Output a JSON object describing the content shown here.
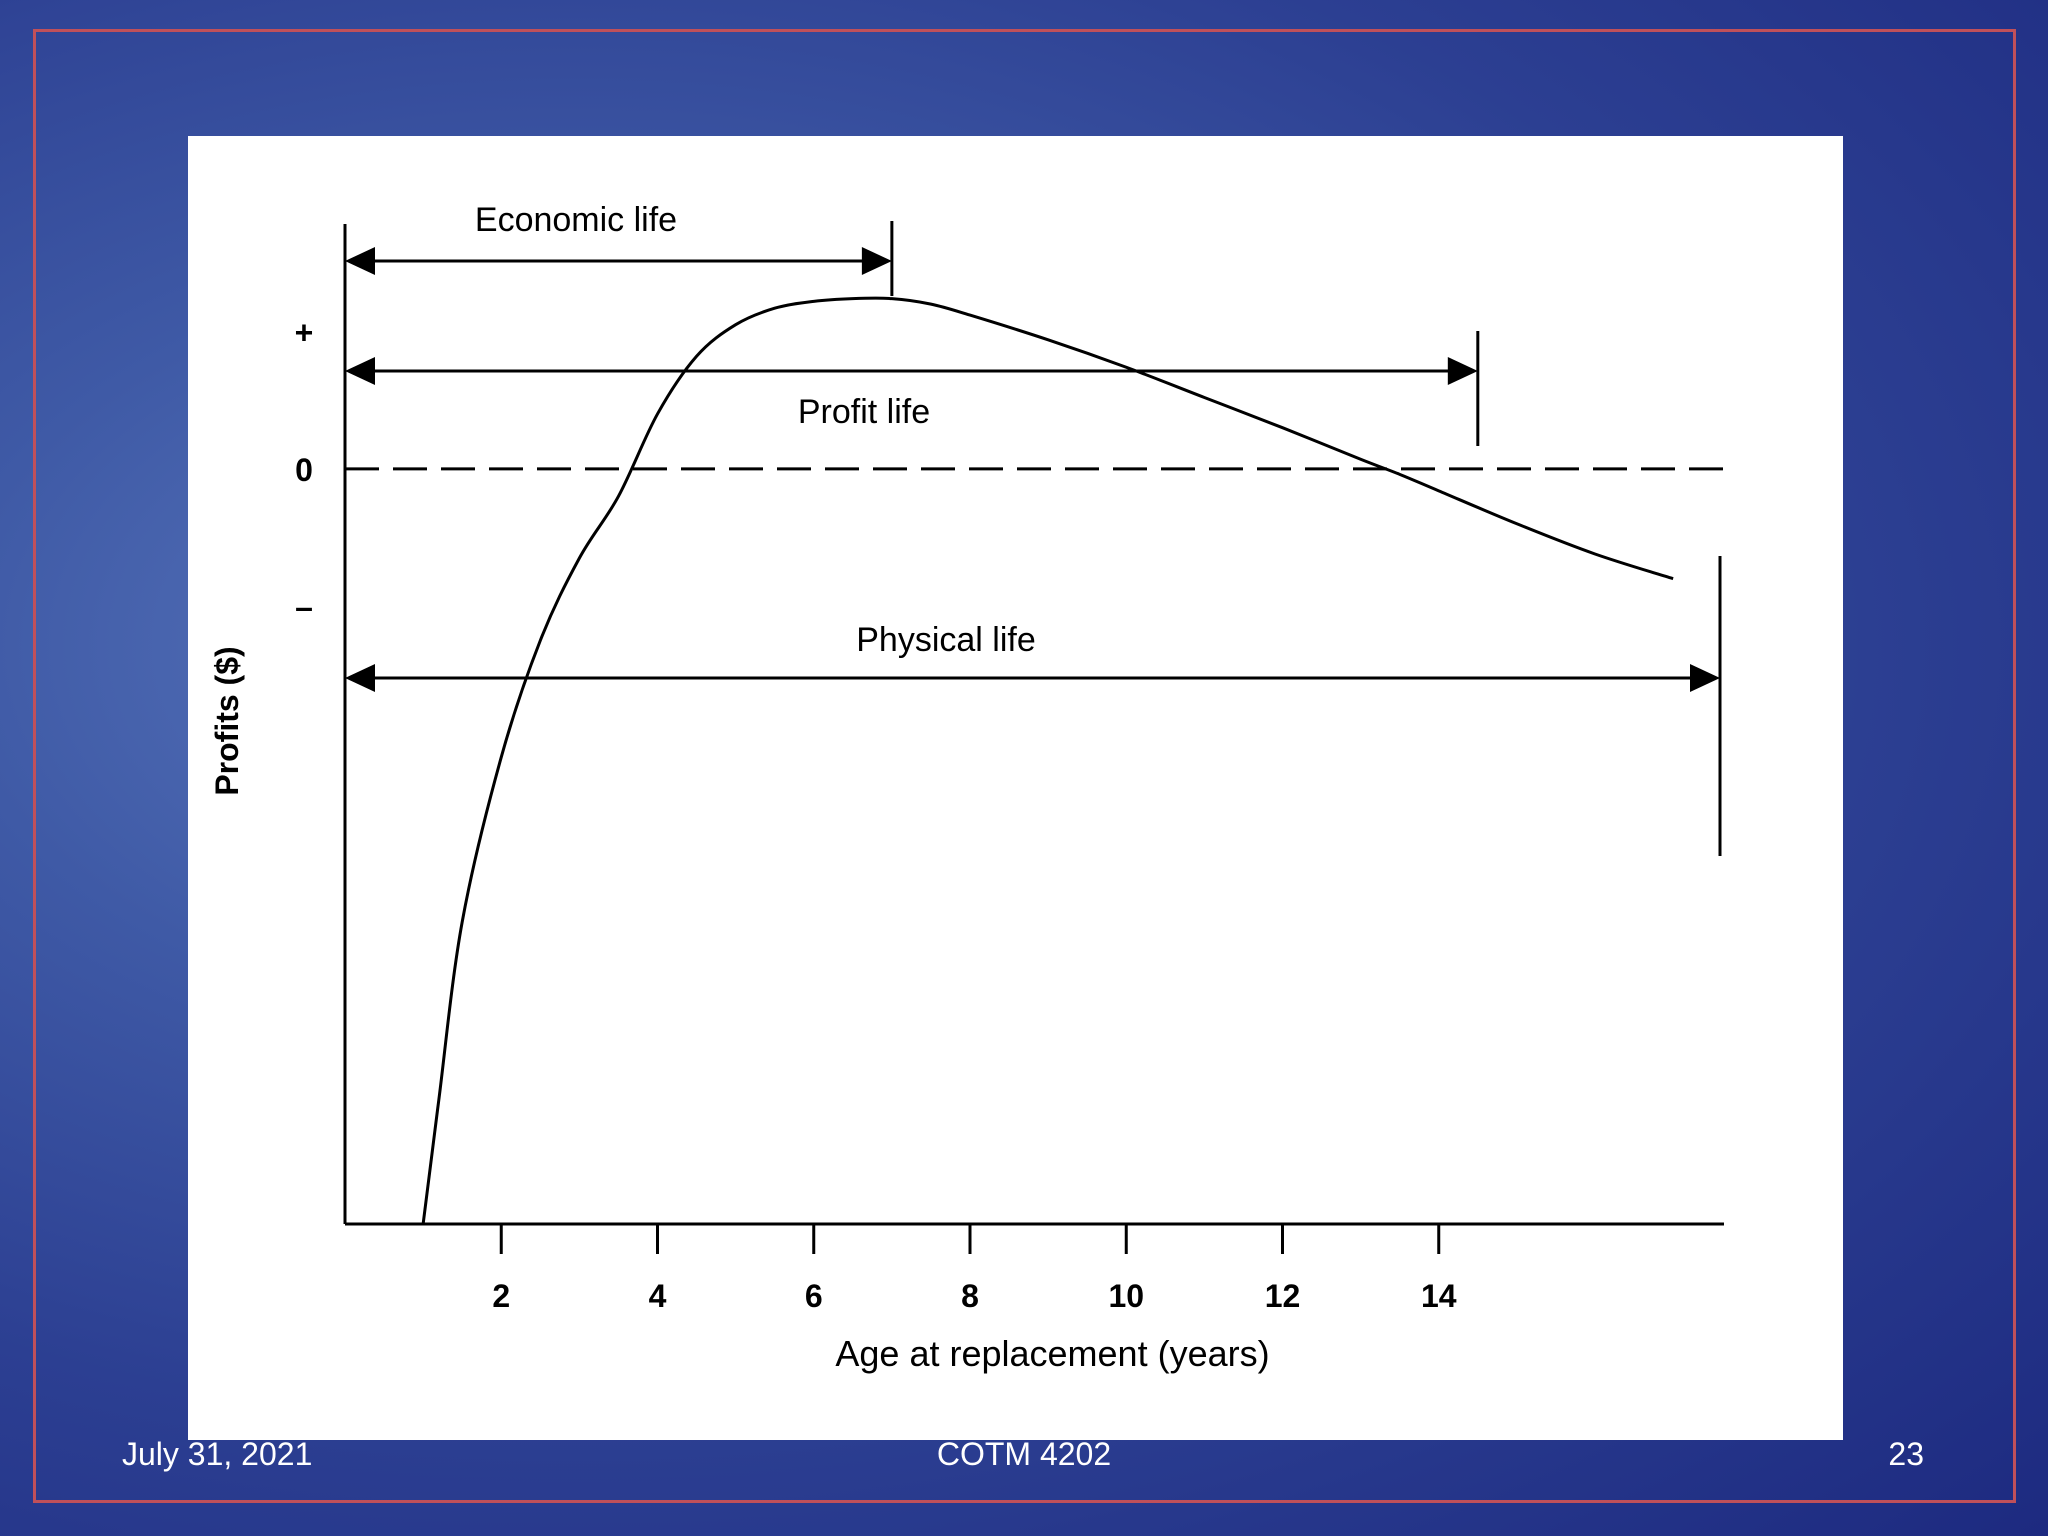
{
  "chart_data": {
    "type": "line",
    "title": "",
    "xlabel": "Age at replacement (years)",
    "ylabel": "Profits ($)",
    "x_ticks": [
      2,
      4,
      6,
      8,
      10,
      12,
      14
    ],
    "y_ticks": [
      "+",
      "0",
      "–"
    ],
    "xlim": [
      0,
      17.6
    ],
    "ylim": [
      -5.5,
      1.9
    ],
    "series": [
      {
        "x": [
          1,
          1.2,
          1.5,
          2,
          2.5,
          3,
          3.5,
          4,
          4.5,
          5,
          5.5,
          6,
          6.5,
          7,
          7.5,
          8,
          9,
          10,
          11,
          12,
          13,
          13.5,
          14,
          15,
          16,
          17
        ],
        "y": [
          -5.5,
          -4.6,
          -3.3,
          -2.1,
          -1.25,
          -0.65,
          -0.2,
          0.4,
          0.82,
          1.05,
          1.17,
          1.22,
          1.24,
          1.24,
          1.2,
          1.12,
          0.94,
          0.74,
          0.52,
          0.3,
          0.07,
          -0.04,
          -0.16,
          -0.4,
          -0.62,
          -0.8
        ]
      }
    ],
    "intervals": [
      {
        "label": "Economic life",
        "x_start": 0,
        "x_end": 7
      },
      {
        "label": "Profit life",
        "x_start": 0,
        "x_end": 14.5
      },
      {
        "label": "Physical life",
        "x_start": 0,
        "x_end": 17.6
      }
    ],
    "zero_line": "dashed"
  },
  "footer": {
    "date": "July 31, 2021",
    "course": "COTM 4202",
    "page": "23"
  }
}
